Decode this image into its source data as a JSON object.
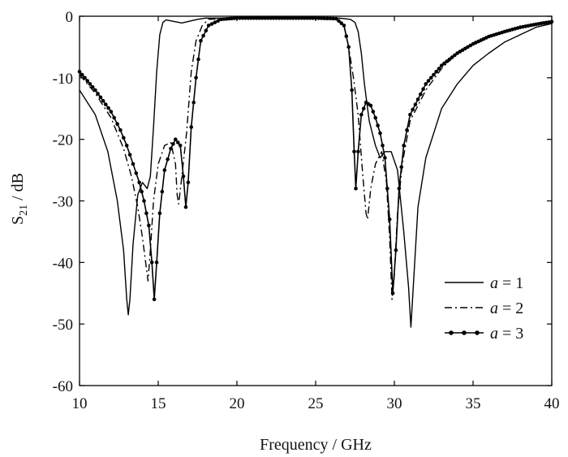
{
  "chart_data": {
    "type": "line",
    "xlabel": "Frequency / GHz",
    "ylabel_main": "S",
    "ylabel_sub": "21",
    "ylabel_unit": " / dB",
    "xlim": [
      10,
      40
    ],
    "ylim": [
      -60,
      0
    ],
    "xticks": [
      10,
      15,
      20,
      25,
      30,
      35,
      40
    ],
    "yticks": [
      0,
      -10,
      -20,
      -30,
      -40,
      -50,
      -60
    ],
    "grid": false,
    "legend_position": "lower-right",
    "series": [
      {
        "name": "a = 1",
        "label_var": "a",
        "label_eq": " = 1",
        "style": "solid",
        "color": "#000000",
        "x": [
          10,
          11,
          11.8,
          12.4,
          12.8,
          13.0,
          13.1,
          13.2,
          13.4,
          13.7,
          14.0,
          14.3,
          14.5,
          14.7,
          14.9,
          15.1,
          15.3,
          15.5,
          16.5,
          17.5,
          18,
          20,
          25,
          26.5,
          27.2,
          27.5,
          27.7,
          27.9,
          28.1,
          28.4,
          28.8,
          29.1,
          29.4,
          29.8,
          30.2,
          30.6,
          30.9,
          31.05,
          31.2,
          31.5,
          32,
          33,
          34,
          35,
          36,
          37,
          38,
          39,
          40
        ],
        "y": [
          -12,
          -16,
          -22,
          -30,
          -38,
          -46,
          -48.5,
          -46,
          -37,
          -29,
          -27,
          -28,
          -26,
          -18,
          -9,
          -3,
          -1,
          -0.6,
          -1.1,
          -0.5,
          -0.3,
          -0.3,
          -0.3,
          -0.3,
          -0.5,
          -1,
          -2.5,
          -6,
          -11,
          -17,
          -21,
          -23,
          -22,
          -22,
          -25,
          -35,
          -44,
          -50.5,
          -44,
          -31,
          -23,
          -15,
          -11,
          -8,
          -6,
          -4.2,
          -3,
          -1.8,
          -1.2
        ]
      },
      {
        "name": "a = 2",
        "label_var": "a",
        "label_eq": " = 2",
        "style": "dashdot",
        "color": "#000000",
        "x": [
          10,
          11,
          12,
          12.8,
          13.3,
          13.7,
          14.0,
          14.2,
          14.35,
          14.5,
          14.7,
          15.0,
          15.4,
          15.8,
          16.1,
          16.2,
          16.3,
          16.5,
          16.8,
          17.1,
          17.4,
          17.8,
          18.2,
          20,
          25,
          26.3,
          26.8,
          27.1,
          27.4,
          27.7,
          28.0,
          28.2,
          28.3,
          28.5,
          28.8,
          29.2,
          29.5,
          29.7,
          29.85,
          30.0,
          30.2,
          30.5,
          31,
          32,
          33,
          34,
          35,
          36,
          37,
          38,
          39,
          40
        ],
        "y": [
          -9.5,
          -12.5,
          -16.5,
          -21.5,
          -26,
          -31,
          -36,
          -40,
          -43,
          -38,
          -30,
          -24,
          -21,
          -20.5,
          -24,
          -29,
          -30.5,
          -26,
          -19,
          -9,
          -4,
          -1.5,
          -0.5,
          -0.3,
          -0.3,
          -0.5,
          -1.5,
          -5,
          -10,
          -16,
          -26,
          -32,
          -33,
          -28,
          -24,
          -22,
          -27,
          -36,
          -46,
          -42,
          -32,
          -24,
          -17,
          -12,
          -8.5,
          -6,
          -4.5,
          -3.3,
          -2.5,
          -1.8,
          -1.3,
          -0.9
        ]
      },
      {
        "name": "a = 3",
        "label_var": "a",
        "label_eq": " = 3",
        "style": "marker",
        "color": "#000000",
        "x": [
          10,
          11,
          12,
          12.6,
          13.0,
          13.4,
          13.8,
          14.1,
          14.4,
          14.6,
          14.75,
          14.9,
          15.1,
          15.4,
          15.8,
          16.1,
          16.4,
          16.6,
          16.75,
          16.9,
          17.1,
          17.4,
          17.7,
          18.2,
          19,
          20,
          25,
          26.3,
          26.8,
          27.1,
          27.3,
          27.45,
          27.55,
          27.7,
          27.9,
          28.2,
          28.5,
          28.8,
          29.1,
          29.4,
          29.7,
          29.9,
          30.1,
          30.3,
          30.6,
          31,
          32,
          33,
          34,
          35,
          36,
          37,
          38,
          39,
          40
        ],
        "y": [
          -9,
          -12,
          -15.5,
          -18.5,
          -21,
          -24,
          -27,
          -30,
          -34,
          -40,
          -46,
          -40,
          -32,
          -25,
          -21.5,
          -20,
          -21,
          -26,
          -31,
          -27,
          -18,
          -10,
          -4,
          -1.5,
          -0.5,
          -0.3,
          -0.3,
          -0.4,
          -1.5,
          -5,
          -12,
          -22,
          -28,
          -22,
          -16,
          -14,
          -14.5,
          -16.5,
          -19,
          -23,
          -33,
          -45,
          -38,
          -28,
          -21,
          -16,
          -11,
          -8,
          -6,
          -4.5,
          -3.3,
          -2.5,
          -1.8,
          -1.3,
          -0.9
        ]
      }
    ]
  }
}
